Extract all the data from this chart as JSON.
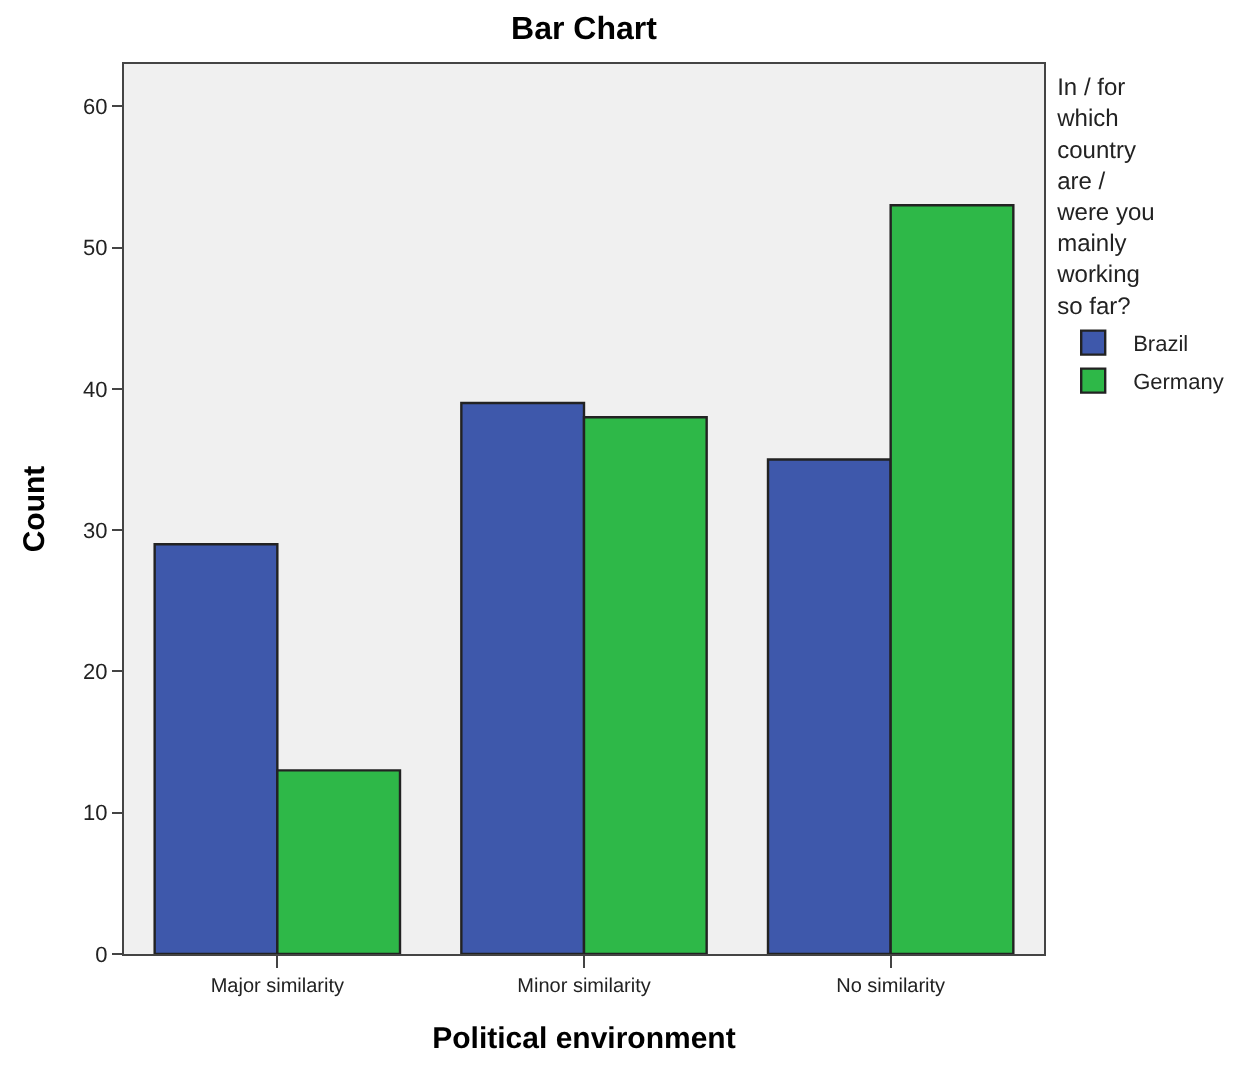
{
  "chart_data": {
    "type": "bar",
    "title": "Bar Chart",
    "xlabel": "Political environment",
    "ylabel": "Count",
    "legend_title": "In / for which country are / were you mainly working so far?",
    "categories": [
      "Major similarity",
      "Minor similarity",
      "No similarity"
    ],
    "series": [
      {
        "name": "Brazil",
        "color": "#3e58ab",
        "values": [
          29,
          39,
          35
        ]
      },
      {
        "name": "Germany",
        "color": "#2eb848",
        "values": [
          13,
          38,
          53
        ]
      }
    ],
    "ylim": [
      0,
      63
    ],
    "yticks": [
      0,
      10,
      20,
      30,
      40,
      50,
      60
    ],
    "grid": false,
    "legend": "right"
  }
}
